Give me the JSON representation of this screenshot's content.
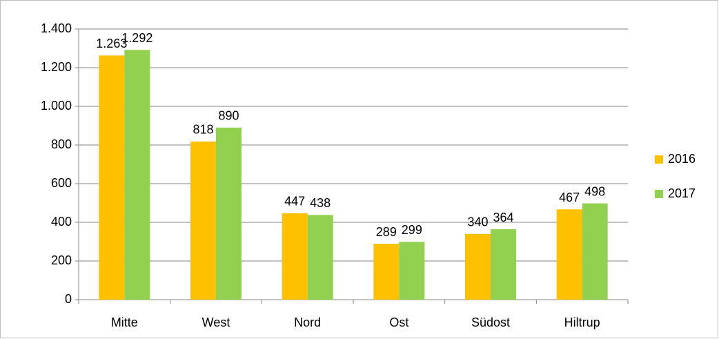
{
  "chart_data": {
    "type": "bar",
    "categories": [
      "Mitte",
      "West",
      "Nord",
      "Ost",
      "Südost",
      "Hiltrup"
    ],
    "series": [
      {
        "name": "2016",
        "color": "#ffc000",
        "values": [
          1263,
          818,
          447,
          289,
          340,
          467
        ],
        "value_labels": [
          "1.263",
          "818",
          "447",
          "289",
          "340",
          "467"
        ]
      },
      {
        "name": "2017",
        "color": "#92d050",
        "values": [
          1292,
          890,
          438,
          299,
          364,
          498
        ],
        "value_labels": [
          "1.292",
          "890",
          "438",
          "299",
          "364",
          "498"
        ]
      }
    ],
    "ylim": [
      0,
      1400
    ],
    "yticks": [
      0,
      200,
      400,
      600,
      800,
      {
        "value": 1000,
        "label": "1.000"
      },
      {
        "value": 1200,
        "label": "1.200"
      },
      {
        "value": 1400,
        "label": "1.400"
      }
    ],
    "grid": true,
    "legend": "right"
  }
}
